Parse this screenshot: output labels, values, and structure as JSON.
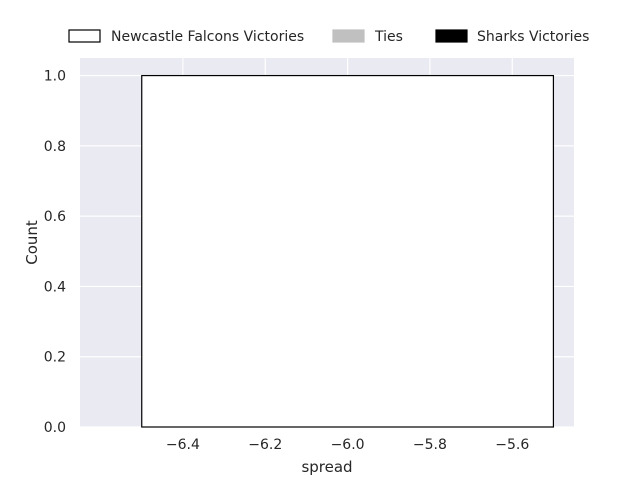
{
  "chart_data": {
    "type": "bar",
    "xlabel": "spread",
    "ylabel": "Count",
    "xlim": [
      -6.65,
      -5.45
    ],
    "ylim": [
      0,
      1.05
    ],
    "xticks": [
      -6.4,
      -6.2,
      -6.0,
      -5.8,
      -5.6
    ],
    "xtick_labels": [
      "−6.4",
      "−6.2",
      "−6.0",
      "−5.8",
      "−5.6"
    ],
    "yticks": [
      0.0,
      0.2,
      0.4,
      0.6,
      0.8,
      1.0
    ],
    "ytick_labels": [
      "0.0",
      "0.2",
      "0.4",
      "0.6",
      "0.8",
      "1.0"
    ],
    "grid": true,
    "legend_position": "top",
    "series": [
      {
        "name": "Newcastle Falcons Victories",
        "fill": "#ffffff",
        "edge": "#000000",
        "bins": [
          {
            "x_start": -6.5,
            "x_end": -5.5,
            "count": 1
          }
        ]
      },
      {
        "name": "Ties",
        "fill": "#c0c0c0",
        "edge": "#c0c0c0",
        "bins": []
      },
      {
        "name": "Sharks Victories",
        "fill": "#000000",
        "edge": "#000000",
        "bins": []
      }
    ],
    "colors": {
      "plot_background": "#eaeaf2",
      "grid": "#ffffff",
      "text": "#262626"
    }
  }
}
